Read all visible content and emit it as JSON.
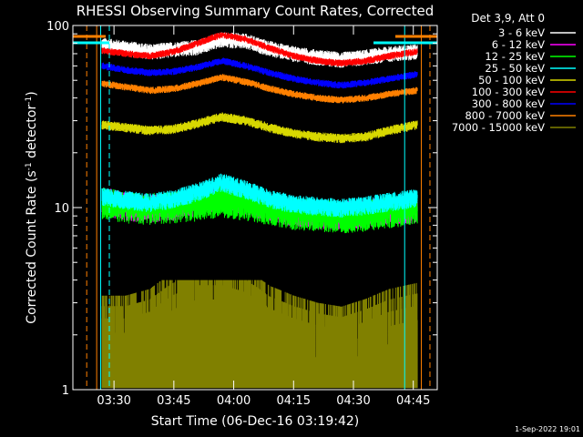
{
  "chart_data": {
    "type": "line",
    "title": "RHESSI Observing Summary Count Rates, Corrected",
    "xlabel": "Start Time (06-Dec-16 03:19:42)",
    "ylabel": "Corrected Count Rate (s⁻¹ detector⁻¹)",
    "ylabel_main": "Corrected Count Rate (s",
    "ylabel_sup1": "-1",
    "ylabel_mid": " detector",
    "ylabel_sup2": "-1",
    "ylabel_end": ")",
    "y_scale": "log",
    "ylim": [
      1,
      100
    ],
    "xlim": [
      "03:19:42",
      "04:51:00"
    ],
    "x_ticks": [
      "03:30",
      "03:45",
      "04:00",
      "04:15",
      "04:30",
      "04:45"
    ],
    "y_ticks": [
      "1",
      "10",
      "100"
    ],
    "grid": false,
    "legend_position": "top-right",
    "legend_header": "Det 3,9, Att 0",
    "footer_date": "1-Sep-2022 19:01",
    "x": [
      "03:27",
      "03:33",
      "03:39",
      "03:45",
      "03:51",
      "03:57",
      "04:03",
      "04:09",
      "04:15",
      "04:21",
      "04:27",
      "04:33",
      "04:39",
      "04:46"
    ],
    "series": [
      {
        "name": "3 - 6 keV",
        "color": "#ffffff",
        "noise": 0.1,
        "values": [
          78,
          75,
          72,
          74,
          76,
          84,
          82,
          75,
          70,
          67,
          65,
          67,
          70,
          72
        ]
      },
      {
        "name": "6 - 12 keV",
        "color": "#ff00ff",
        "noise": 0.18,
        "values": [
          11,
          10.3,
          10,
          10.3,
          10.8,
          11.6,
          11,
          10.2,
          9.6,
          9.3,
          9.2,
          9.4,
          9.8,
          10
        ]
      },
      {
        "name": "12 - 25 keV",
        "color": "#00ff00",
        "noise": 0.2,
        "values": [
          10.8,
          10.2,
          10,
          10.2,
          10.5,
          11,
          10.5,
          10,
          9.4,
          9.2,
          9,
          9.2,
          9.6,
          10
        ]
      },
      {
        "name": "25 - 50 keV",
        "color": "#00ffff",
        "noise": 0.12,
        "values": [
          11.5,
          11,
          10.7,
          11.2,
          12.2,
          13.8,
          12.6,
          11.2,
          10.5,
          10.2,
          10,
          10.3,
          10.8,
          11.3
        ]
      },
      {
        "name": "50 - 100 keV",
        "color": "#d8d800",
        "noise": 0.06,
        "values": [
          28.5,
          27.5,
          26.5,
          27,
          29,
          31.5,
          30,
          27.5,
          25.5,
          24.5,
          24,
          24.5,
          26.5,
          28.5
        ]
      },
      {
        "name": "100 - 300 keV",
        "color": "#ff0000",
        "noise": 0.045,
        "values": [
          73,
          70,
          68,
          72,
          80,
          89,
          84,
          75,
          68,
          64,
          62,
          64,
          68,
          72
        ]
      },
      {
        "name": "300 - 800 keV",
        "color": "#0000ff",
        "noise": 0.045,
        "values": [
          60,
          57,
          55,
          56,
          59,
          64,
          60,
          55,
          51,
          48.5,
          47,
          48.5,
          51,
          54
        ]
      },
      {
        "name": "800 - 7000 keV",
        "color": "#ff8000",
        "noise": 0.045,
        "values": [
          48,
          46,
          44,
          45,
          48,
          52,
          49,
          45,
          42,
          40,
          39,
          40,
          42,
          44
        ]
      },
      {
        "name": "7000 - 15000 keV",
        "color": "#808000",
        "noise": 0.0,
        "values": [
          2.3,
          2.3,
          2.5,
          3.1,
          3.5,
          3.5,
          3.2,
          2.6,
          2.3,
          2.1,
          2,
          2.2,
          2.5,
          2.7
        ]
      }
    ],
    "markers": [
      {
        "time": "03:23:10",
        "color": "#ff8000",
        "style": "dashed"
      },
      {
        "time": "03:25:40",
        "color": "#ff8000",
        "style": "solid"
      },
      {
        "time": "03:26:40",
        "color": "#00ffff",
        "style": "solid"
      },
      {
        "time": "03:28:50",
        "color": "#00ffff",
        "style": "dashed"
      },
      {
        "time": "04:42:50",
        "color": "#00ffff",
        "style": "solid"
      },
      {
        "time": "04:47:00",
        "color": "#ff8000",
        "style": "solid"
      },
      {
        "time": "04:49:10",
        "color": "#ff8000",
        "style": "dashed"
      }
    ]
  }
}
